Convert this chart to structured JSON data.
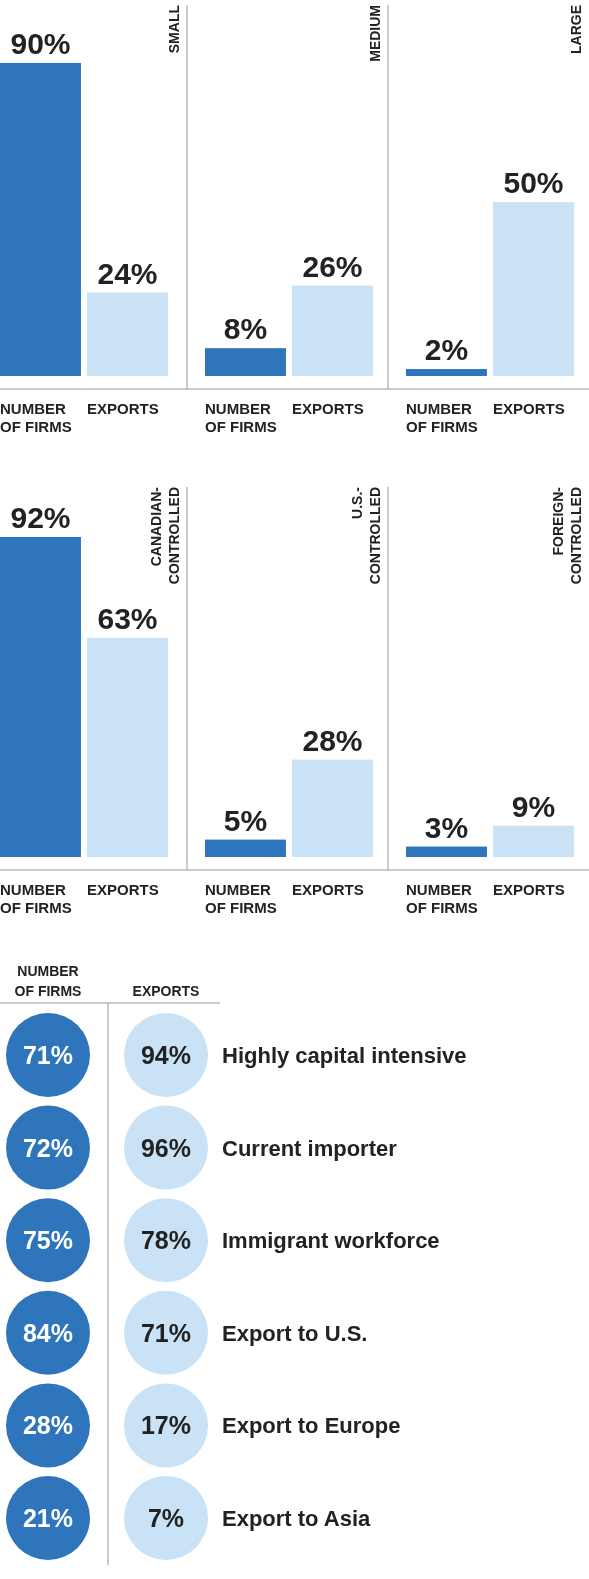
{
  "chart_data": [
    {
      "type": "bar",
      "title": "SMALL",
      "categories": [
        "NUMBER OF FIRMS",
        "EXPORTS"
      ],
      "values": [
        90,
        24
      ],
      "colors": [
        "#2e75bb",
        "#c9e2f5"
      ],
      "value_labels": [
        "90%",
        "24%"
      ],
      "tick_labels": "x"
    },
    {
      "type": "bar",
      "title": "MEDIUM",
      "categories": [
        "NUMBER OF FIRMS",
        "EXPORTS"
      ],
      "values": [
        8,
        26
      ],
      "colors": [
        "#2e75bb",
        "#c9e2f5"
      ],
      "value_labels": [
        "8%",
        "26%"
      ],
      "tick_labels": "x"
    },
    {
      "type": "bar",
      "title": "LARGE",
      "categories": [
        "NUMBER OF FIRMS",
        "EXPORTS"
      ],
      "values": [
        2,
        50
      ],
      "colors": [
        "#2e75bb",
        "#c9e2f5"
      ],
      "value_labels": [
        "2%",
        "50%"
      ],
      "tick_labels": "x"
    },
    {
      "type": "bar",
      "title": "CANADIAN-CONTROLLED",
      "categories": [
        "NUMBER OF FIRMS",
        "EXPORTS"
      ],
      "values": [
        92,
        63
      ],
      "colors": [
        "#2e75bb",
        "#c9e2f5"
      ],
      "value_labels": [
        "92%",
        "63%"
      ],
      "tick_labels": "x"
    },
    {
      "type": "bar",
      "title": "U.S.-CONTROLLED",
      "categories": [
        "NUMBER OF FIRMS",
        "EXPORTS"
      ],
      "values": [
        5,
        28
      ],
      "colors": [
        "#2e75bb",
        "#c9e2f5"
      ],
      "value_labels": [
        "5%",
        "28%"
      ],
      "tick_labels": "x"
    },
    {
      "type": "bar",
      "title": "FOREIGN-CONTROLLED",
      "categories": [
        "NUMBER OF FIRMS",
        "EXPORTS"
      ],
      "values": [
        3,
        9
      ],
      "colors": [
        "#2e75bb",
        "#c9e2f5"
      ],
      "value_labels": [
        "3%",
        "9%"
      ],
      "tick_labels": "x"
    },
    {
      "type": "other",
      "categories": [
        "Highly capital intensive",
        "Current importer",
        "Immigrant workforce",
        "Export to U.S.",
        "Export to Europe",
        "Export to Asia"
      ],
      "series": [
        {
          "name": "NUMBER OF FIRMS",
          "color": "#2e75bb",
          "values": [
            71,
            72,
            75,
            84,
            28,
            21
          ],
          "value_labels": [
            "71%",
            "72%",
            "75%",
            "84%",
            "28%",
            "21%"
          ]
        },
        {
          "name": "EXPORTS",
          "color": "#c9e2f5",
          "values": [
            94,
            96,
            78,
            71,
            17,
            7
          ],
          "value_labels": [
            "94%",
            "96%",
            "78%",
            "71%",
            "17%",
            "7%"
          ]
        }
      ]
    }
  ]
}
